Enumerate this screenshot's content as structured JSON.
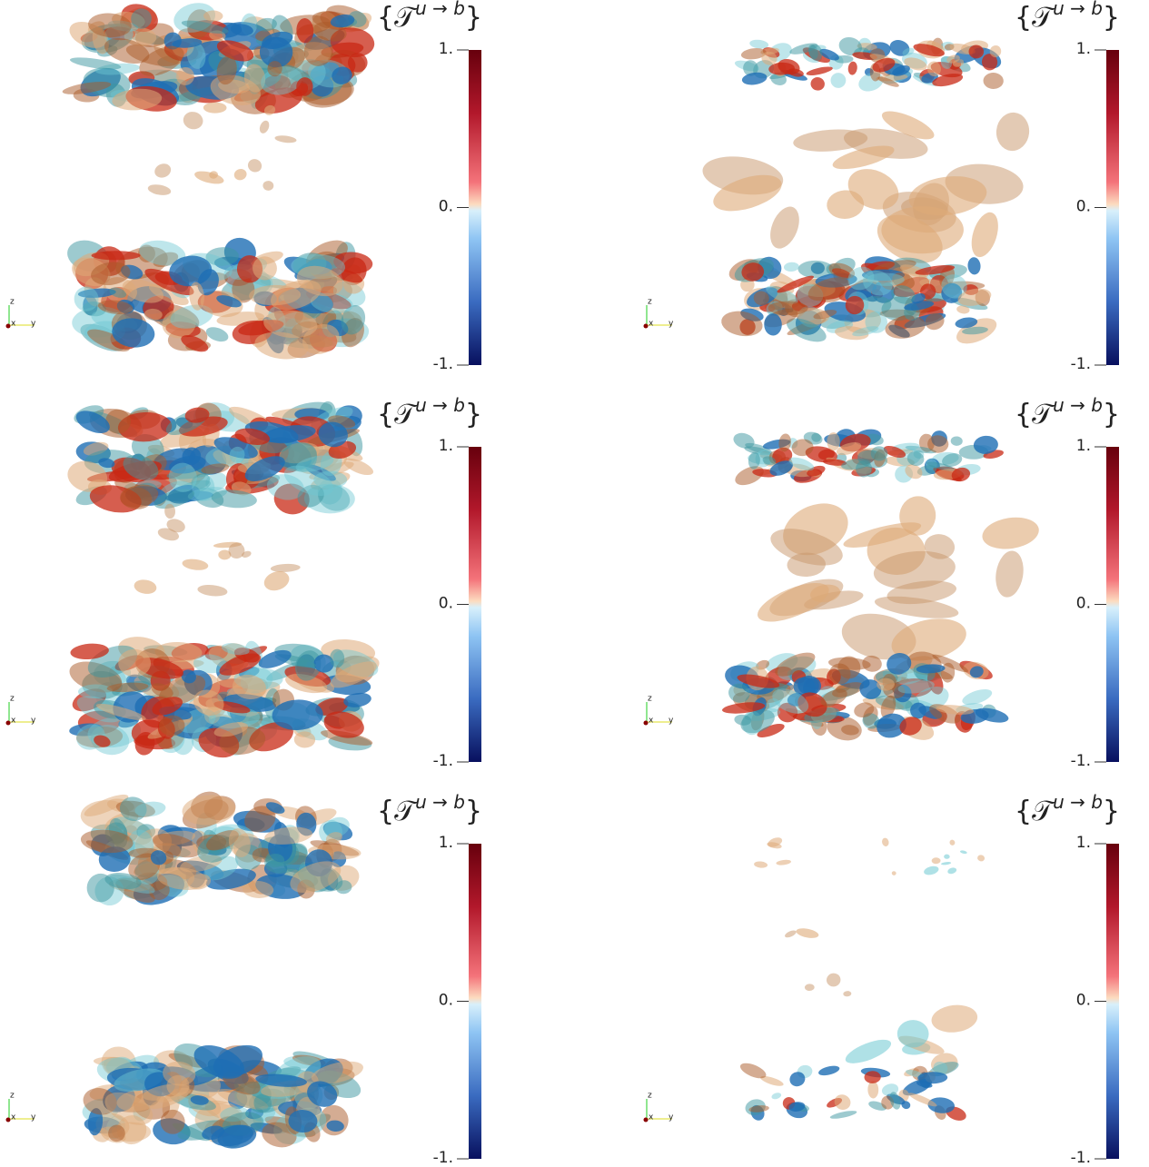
{
  "panels": [
    {
      "colorbar": {
        "title_open": "{",
        "title_symbol": "𝒯",
        "title_sup": "u → b",
        "title_close": "}",
        "range": [
          -1,
          1
        ],
        "ticks": [
          {
            "value": 1,
            "label": "1."
          },
          {
            "value": 0,
            "label": "0."
          },
          {
            "value": -1,
            "label": "-1."
          }
        ]
      },
      "axes_triad": {
        "labels": [
          "z",
          "x",
          "y"
        ]
      }
    },
    {
      "colorbar": {
        "title_open": "{",
        "title_symbol": "𝒯",
        "title_sup": "u → b",
        "title_close": "}",
        "range": [
          -1,
          1
        ],
        "ticks": [
          {
            "value": 1,
            "label": "1."
          },
          {
            "value": 0,
            "label": "0."
          },
          {
            "value": -1,
            "label": "-1."
          }
        ]
      },
      "axes_triad": {
        "labels": [
          "z",
          "x",
          "y"
        ]
      }
    },
    {
      "colorbar": {
        "title_open": "{",
        "title_symbol": "𝒯",
        "title_sup": "u → b",
        "title_close": "}",
        "range": [
          -1,
          1
        ],
        "ticks": [
          {
            "value": 1,
            "label": "1."
          },
          {
            "value": 0,
            "label": "0."
          },
          {
            "value": -1,
            "label": "-1."
          }
        ]
      },
      "axes_triad": {
        "labels": [
          "z",
          "x",
          "y"
        ]
      }
    },
    {
      "colorbar": {
        "title_open": "{",
        "title_symbol": "𝒯",
        "title_sup": "u → b",
        "title_close": "}",
        "range": [
          -1,
          1
        ],
        "ticks": [
          {
            "value": 1,
            "label": "1."
          },
          {
            "value": 0,
            "label": "0."
          },
          {
            "value": -1,
            "label": "-1."
          }
        ]
      },
      "axes_triad": {
        "labels": [
          "z",
          "x",
          "y"
        ]
      }
    },
    {
      "colorbar": {
        "title_open": "{",
        "title_symbol": "𝒯",
        "title_sup": "u → b",
        "title_close": "}",
        "range": [
          -1,
          1
        ],
        "ticks": [
          {
            "value": 1,
            "label": "1."
          },
          {
            "value": 0,
            "label": "0."
          },
          {
            "value": -1,
            "label": "-1."
          }
        ]
      },
      "axes_triad": {
        "labels": [
          "z",
          "x",
          "y"
        ]
      }
    },
    {
      "colorbar": {
        "title_open": "{",
        "title_symbol": "𝒯",
        "title_sup": "u → b",
        "title_close": "}",
        "range": [
          -1,
          1
        ],
        "ticks": [
          {
            "value": 1,
            "label": "1."
          },
          {
            "value": 0,
            "label": "0."
          },
          {
            "value": -1,
            "label": "-1."
          }
        ]
      },
      "axes_triad": {
        "labels": [
          "z",
          "x",
          "y"
        ]
      }
    }
  ]
}
